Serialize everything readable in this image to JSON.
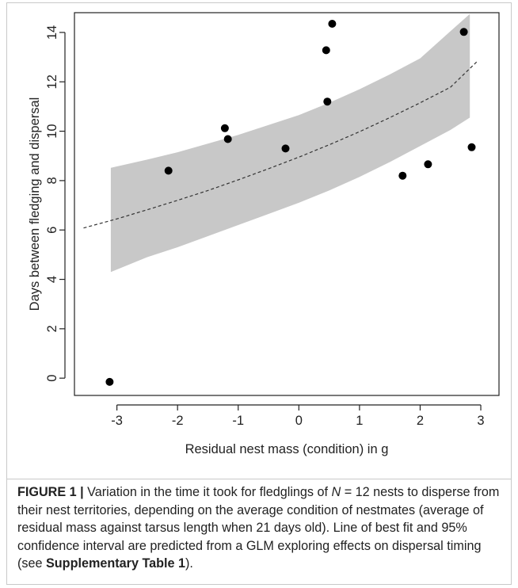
{
  "chart_data": {
    "type": "scatter",
    "xlabel": "Residual nest mass (condition) in g",
    "ylabel": "Days between fledging and dispersal",
    "xlim": [
      -3.7,
      3.3
    ],
    "ylim": [
      -0.7,
      14.8
    ],
    "xticks": [
      -3,
      -2,
      -1,
      0,
      1,
      2,
      3
    ],
    "yticks": [
      0,
      2,
      4,
      6,
      8,
      10,
      12,
      14
    ],
    "grid": false,
    "points": [
      {
        "x": -3.12,
        "y": -0.15
      },
      {
        "x": -2.15,
        "y": 8.4
      },
      {
        "x": -1.22,
        "y": 10.12
      },
      {
        "x": -1.17,
        "y": 9.68
      },
      {
        "x": -0.22,
        "y": 9.3
      },
      {
        "x": 0.45,
        "y": 13.28
      },
      {
        "x": 0.47,
        "y": 11.2
      },
      {
        "x": 0.55,
        "y": 14.35
      },
      {
        "x": 1.71,
        "y": 8.2
      },
      {
        "x": 2.13,
        "y": 8.66
      },
      {
        "x": 2.72,
        "y": 14.02
      },
      {
        "x": 2.85,
        "y": 9.35
      }
    ],
    "fit_line": {
      "x": [
        -3.55,
        -3.0,
        -2.5,
        -2.0,
        -1.5,
        -1.0,
        -0.5,
        0.0,
        0.5,
        1.0,
        1.5,
        2.0,
        2.5,
        2.95
      ],
      "y": [
        6.08,
        6.45,
        6.82,
        7.2,
        7.6,
        8.03,
        8.48,
        8.95,
        9.45,
        9.98,
        10.55,
        11.15,
        11.78,
        12.85
      ]
    },
    "confidence_band": {
      "x": [
        -3.1,
        -2.5,
        -2.0,
        -1.5,
        -1.0,
        -0.5,
        0.0,
        0.5,
        1.0,
        1.5,
        2.0,
        2.5,
        2.82
      ],
      "lower": [
        4.3,
        4.9,
        5.3,
        5.75,
        6.2,
        6.65,
        7.1,
        7.6,
        8.15,
        8.75,
        9.4,
        10.05,
        10.55
      ],
      "upper": [
        8.52,
        8.85,
        9.15,
        9.5,
        9.85,
        10.25,
        10.65,
        11.15,
        11.7,
        12.3,
        12.95,
        14.05,
        14.75
      ]
    },
    "colors": {
      "points": "#000000",
      "band": "#c8c8c8",
      "line": "#333333"
    }
  },
  "caption": {
    "label": "FIGURE 1 |",
    "text_before_n": " Variation in the time it took for fledglings of ",
    "n_symbol": "N",
    "text_after_n": " = 12 nests to disperse from their nest territories, depending on the average condition of nestmates (average of residual mass against tarsus length when 21 days old). Line of best fit and 95% confidence interval are predicted from a GLM exploring effects on dispersal timing (see ",
    "ref": "Supplementary Table 1",
    "text_end": ")."
  }
}
